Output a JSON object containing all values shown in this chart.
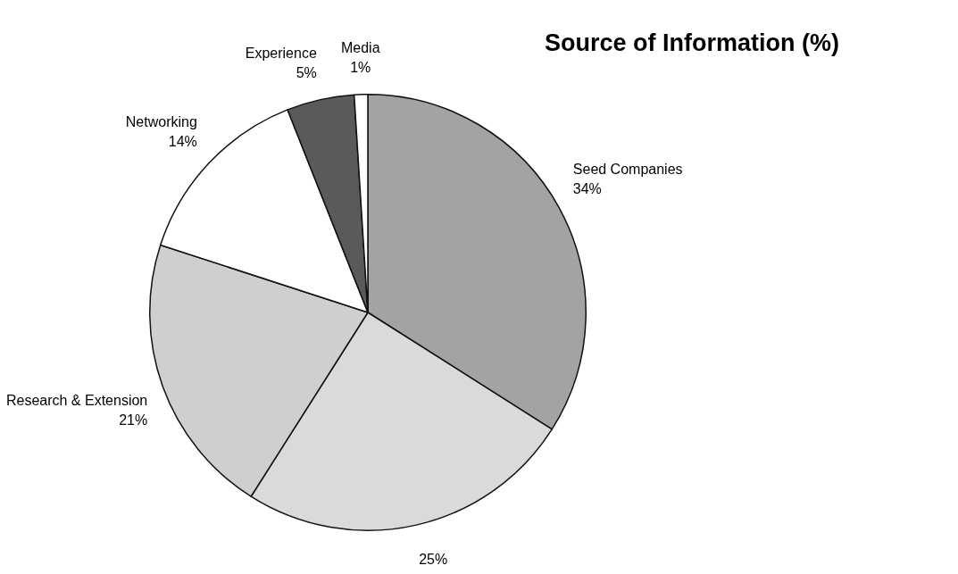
{
  "chart_data": {
    "type": "pie",
    "title": "Source of Information (%)",
    "categories": [
      "Seed Companies",
      null,
      "Research & Extension",
      "Networking",
      "Experience",
      "Media"
    ],
    "values": [
      34,
      25,
      21,
      14,
      5,
      1
    ],
    "colors": [
      "#a3a3a3",
      "#dadada",
      "#cfcfcf",
      "#ffffff",
      "#5a5a5a",
      "#ffffff"
    ],
    "value_labels": [
      "34%",
      "25%",
      "21%",
      "14%",
      "5%",
      "1%"
    ],
    "legend": false
  }
}
